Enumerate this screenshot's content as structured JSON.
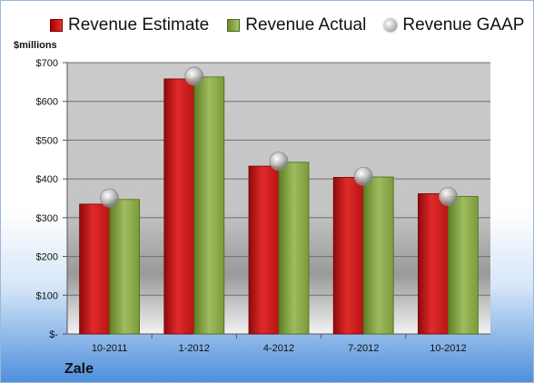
{
  "brand": "Zale",
  "colors": {
    "estimate": "#d42020",
    "actual": "#90b050",
    "gaap": "#bdbdbd"
  },
  "chart_data": {
    "type": "bar",
    "title": "",
    "ylabel": "$millions",
    "xlabel": "",
    "legend_position": "top",
    "grid": true,
    "ylim": [
      0,
      700
    ],
    "y_ticks": [
      0,
      100,
      200,
      300,
      400,
      500,
      600,
      700
    ],
    "y_tick_labels": [
      "$-",
      "$100",
      "$200",
      "$300",
      "$400",
      "$500",
      "$600",
      "$700"
    ],
    "categories": [
      "10-2011",
      "1-2012",
      "4-2012",
      "7-2012",
      "10-2012"
    ],
    "series": [
      {
        "name": "Revenue Estimate",
        "type": "bar",
        "values": [
          335,
          658,
          433,
          404,
          362
        ]
      },
      {
        "name": "Revenue Actual",
        "type": "bar",
        "values": [
          347,
          663,
          443,
          405,
          355
        ]
      },
      {
        "name": "Revenue GAAP",
        "type": "scatter",
        "values": [
          351,
          665,
          446,
          407,
          355
        ]
      }
    ]
  }
}
